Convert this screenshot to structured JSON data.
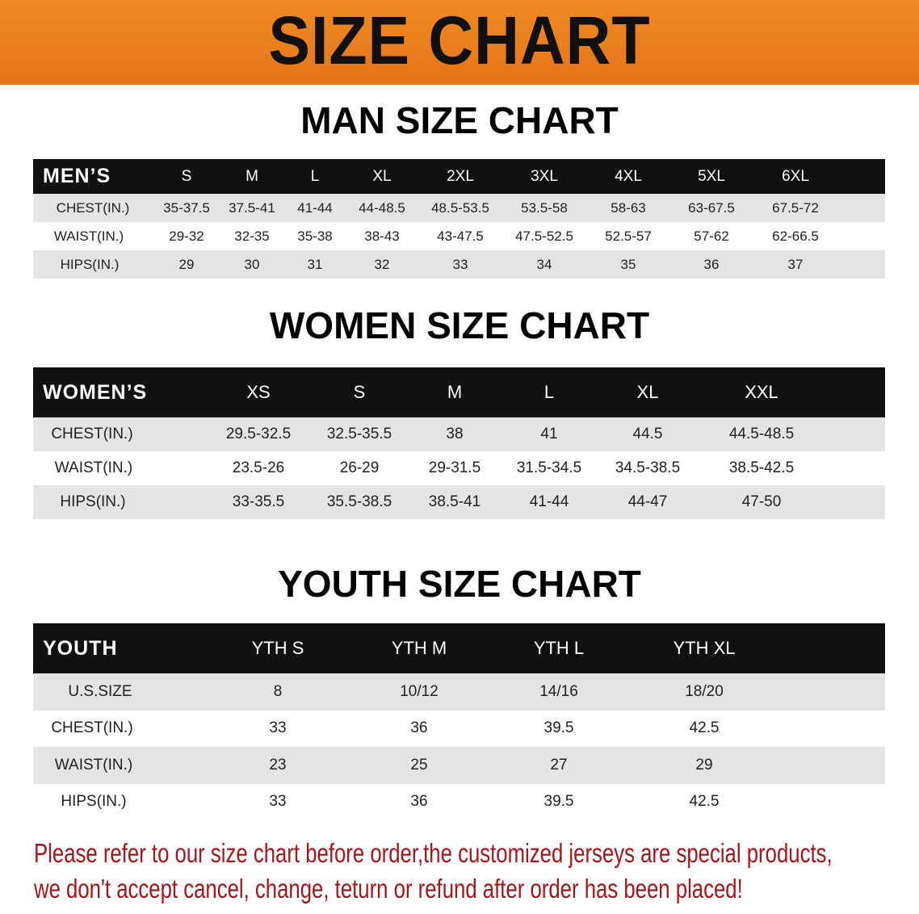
{
  "title": "SIZE CHART",
  "colors": {
    "banner": "#e87d1e",
    "header_row": "#111111",
    "stripe": "#e4e4e4",
    "note": "#a3161a"
  },
  "men": {
    "title": "MAN SIZE CHART",
    "header": [
      "MEN’S",
      "S",
      "M",
      "L",
      "XL",
      "2XL",
      "3XL",
      "4XL",
      "5XL",
      "6XL"
    ],
    "rows": [
      [
        "CHEST(IN.)",
        "35-37.5",
        "37.5-41",
        "41-44",
        "44-48.5",
        "48.5-53.5",
        "53.5-58",
        "58-63",
        "63-67.5",
        "67.5-72"
      ],
      [
        "WAIST(IN.)",
        "29-32",
        "32-35",
        "35-38",
        "38-43",
        "43-47.5",
        "47.5-52.5",
        "52.5-57",
        "57-62",
        "62-66.5"
      ],
      [
        "HIPS(IN.)",
        "29",
        "30",
        "31",
        "32",
        "33",
        "34",
        "35",
        "36",
        "37"
      ]
    ]
  },
  "women": {
    "title": "WOMEN SIZE CHART",
    "header": [
      "WOMEN’S",
      "XS",
      "S",
      "M",
      "L",
      "XL",
      "XXL"
    ],
    "rows": [
      [
        "CHEST(IN.)",
        "29.5-32.5",
        "32.5-35.5",
        "38",
        "41",
        "44.5",
        "44.5-48.5"
      ],
      [
        "WAIST(IN.)",
        "23.5-26",
        "26-29",
        "29-31.5",
        "31.5-34.5",
        "34.5-38.5",
        "38.5-42.5"
      ],
      [
        "HIPS(IN.)",
        "33-35.5",
        "35.5-38.5",
        "38.5-41",
        "41-44",
        "44-47",
        "47-50"
      ]
    ]
  },
  "youth": {
    "title": "YOUTH SIZE CHART",
    "header": [
      "YOUTH",
      "YTH S",
      "YTH M",
      "YTH L",
      "YTH XL"
    ],
    "rows": [
      [
        "U.S.SIZE",
        "8",
        "10/12",
        "14/16",
        "18/20"
      ],
      [
        "CHEST(IN.)",
        "33",
        "36",
        "39.5",
        "42.5"
      ],
      [
        "WAIST(IN.)",
        "23",
        "25",
        "27",
        "29"
      ],
      [
        "HIPS(IN.)",
        "33",
        "36",
        "39.5",
        "42.5"
      ]
    ]
  },
  "notice": [
    "Please refer to our size chart before order,the customized jerseys are special products,",
    "we don't accept cancel, change, teturn or refund after order has been placed!"
  ]
}
